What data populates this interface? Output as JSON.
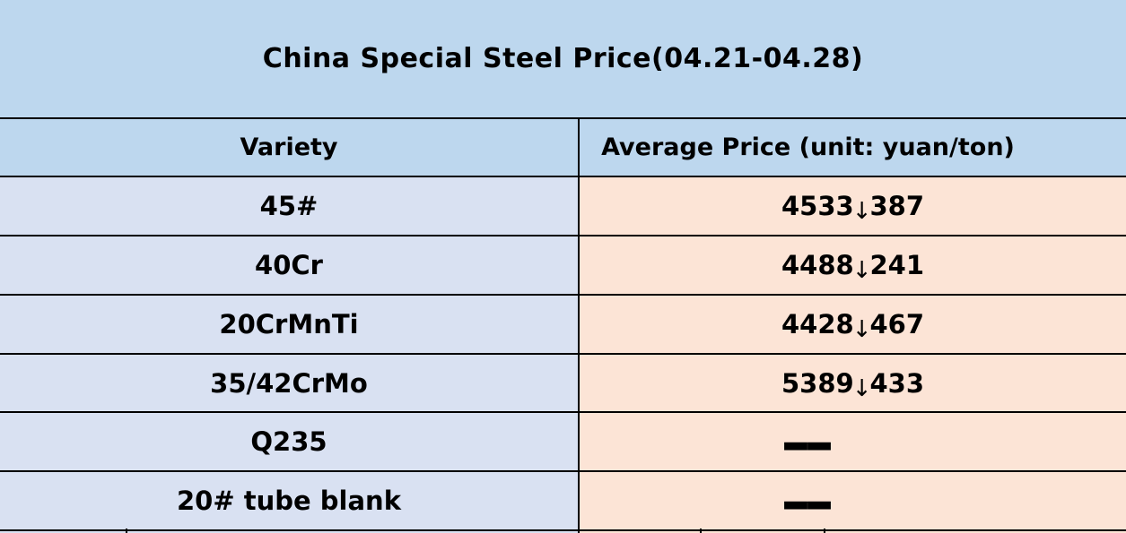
{
  "table": {
    "title": "China Special Steel Price(04.21-04.28)",
    "columns": [
      "Variety",
      "Average Price (unit: yuan/ton)"
    ],
    "rows": [
      {
        "variety": "45#",
        "price": "4533",
        "arrow": "↓",
        "change": "387",
        "direction": "down"
      },
      {
        "variety": "40Cr",
        "price": "4488",
        "arrow": "↓",
        "change": "241",
        "direction": "down"
      },
      {
        "variety": "20CrMnTi",
        "price": "4428",
        "arrow": "↓",
        "change": "467",
        "direction": "down"
      },
      {
        "variety": "35/42CrMo",
        "price": "5389",
        "arrow": "↓",
        "change": "433",
        "direction": "down"
      },
      {
        "variety": "Q235",
        "price": "——",
        "arrow": "",
        "change": "",
        "direction": "none"
      },
      {
        "variety": "20# tube blank",
        "price": "——",
        "arrow": "",
        "change": "",
        "direction": "none"
      }
    ]
  },
  "icons": {
    "down_arrow": "↓"
  },
  "colors": {
    "header_blue": "#BDD7EE",
    "variety_cell": "#D9E1F2",
    "price_cell": "#FCE4D6",
    "border": "#000000",
    "text": "#000000"
  },
  "chart_data": {
    "type": "table",
    "title": "China Special Steel Price(04.21-04.28)",
    "columns": [
      "Variety",
      "Average Price (unit: yuan/ton)"
    ],
    "rows": [
      [
        "45#",
        "4533 ↓387"
      ],
      [
        "40Cr",
        "4488 ↓241"
      ],
      [
        "20CrMnTi",
        "4428 ↓467"
      ],
      [
        "35/42CrMo",
        "5389 ↓433"
      ],
      [
        "Q235",
        "——"
      ],
      [
        "20# tube blank",
        "——"
      ]
    ]
  }
}
